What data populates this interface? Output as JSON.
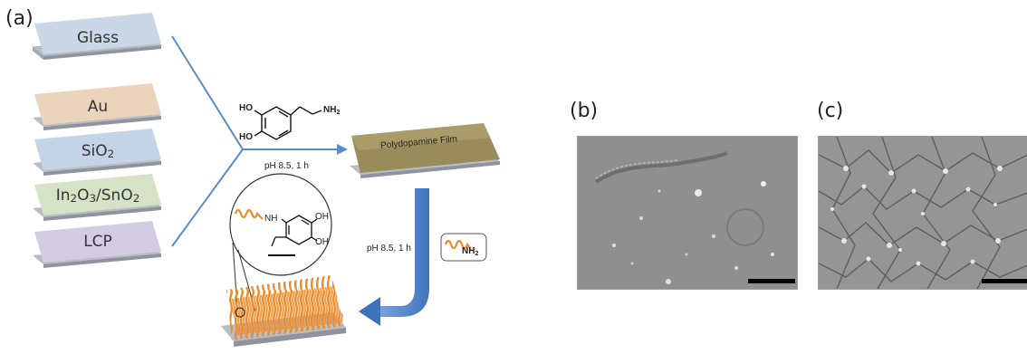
{
  "panels": {
    "a": "(a)",
    "b": "(b)",
    "c": "(c)"
  },
  "substrates": [
    {
      "label": "Glass",
      "color": "#c9d7e6"
    },
    {
      "label": "Au",
      "color": "#ecd3bb"
    },
    {
      "label": "SiO",
      "sub": "2",
      "color": "#c3d4e6"
    },
    {
      "label": "In",
      "sub": "2",
      "label2": "O",
      "sub2": "3",
      "label3": "/SnO",
      "sub3": "2",
      "color": "#d5e2c6"
    },
    {
      "label": "LCP",
      "color": "#d3cce3"
    }
  ],
  "molecule": {
    "ho_top": "HO",
    "ho_bottom": "HO",
    "nh2": "NH",
    "nh2_sub": "2"
  },
  "step1_condition": "pH 8.5, 1 h",
  "film_label": "Polydopamine Film",
  "film_color": "#9a8c5a",
  "step2_condition": "pH 8.5, 1 h",
  "reagent": {
    "label": "NH",
    "sub": "2",
    "chain_color": "#f08a24"
  },
  "zoom": {
    "nh": "NH",
    "oh_top": "OH",
    "oh_bottom": "OH"
  },
  "colors": {
    "flow_arrow": "#5b8bc9",
    "plate_side": "#b8bcc4"
  }
}
